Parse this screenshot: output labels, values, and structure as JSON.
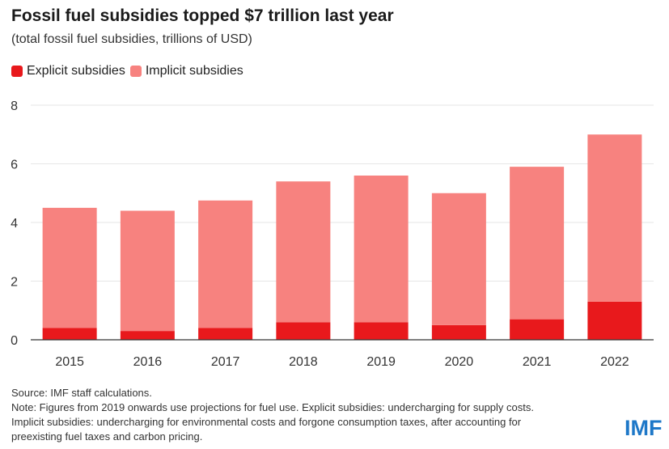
{
  "title": "Fossil fuel subsidies topped $7 trillion last year",
  "subtitle": "(total fossil fuel subsidies, trillions of USD)",
  "legend": {
    "explicit": "Explicit subsidies",
    "implicit": "Implicit subsidies"
  },
  "colors": {
    "explicit": "#e8191c",
    "implicit": "#f7827f",
    "grid": "#e6e6e6",
    "axis": "#333333",
    "logo": "#1e78c8"
  },
  "footer": {
    "source": "Source: IMF staff calculations.",
    "note1": "Note: Figures from 2019 onwards use projections for fuel use. Explicit subsidies: undercharging for supply costs.",
    "note2": "Implicit subsidies: undercharging for environmental costs and forgone consumption taxes, after accounting for",
    "note3": "preexisting fuel taxes and carbon pricing."
  },
  "logo": "IMF",
  "chart_data": {
    "type": "bar",
    "stacked": true,
    "title": "Fossil fuel subsidies topped $7 trillion last year",
    "subtitle": "(total fossil fuel subsidies, trillions of USD)",
    "categories": [
      "2015",
      "2016",
      "2017",
      "2018",
      "2019",
      "2020",
      "2021",
      "2022"
    ],
    "series": [
      {
        "name": "Explicit subsidies",
        "values": [
          0.4,
          0.3,
          0.4,
          0.6,
          0.6,
          0.5,
          0.7,
          1.3
        ]
      },
      {
        "name": "Implicit subsidies",
        "values": [
          4.1,
          4.1,
          4.35,
          4.8,
          5.0,
          4.5,
          5.2,
          5.7
        ]
      }
    ],
    "yticks": [
      0,
      2,
      4,
      6,
      8
    ],
    "ylim": [
      0,
      8
    ],
    "xlabel": "",
    "ylabel": "",
    "grid": true,
    "legend": "top-left"
  }
}
